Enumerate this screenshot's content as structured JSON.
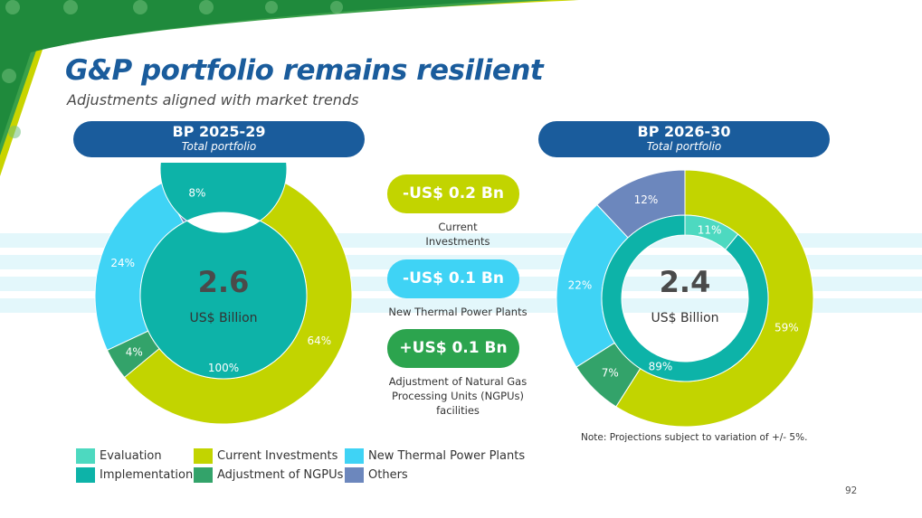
{
  "title": "G&P portfolio remains resilient",
  "subtitle": "Adjustments aligned with market trends",
  "colors": {
    "brand_blue": "#1a5c9c",
    "evaluation": "#4dd9c0",
    "implementation": "#0db3a8",
    "current_investments": "#c2d400",
    "new_thermal": "#3fd3f5",
    "adjustment_ngpus": "#33a36a",
    "others": "#6c87bd",
    "badge_light_green": "#c2d400",
    "badge_cyan": "#3fd3f5",
    "badge_green": "#2ca44e"
  },
  "left_panel": {
    "heading": "BP 2025-29",
    "subheading": "Total portfolio",
    "total_value": "2.6",
    "total_unit": "US$ Billion"
  },
  "right_panel": {
    "heading": "BP 2026-30",
    "subheading": "Total portfolio",
    "total_value": "2.4",
    "total_unit": "US$ Billion"
  },
  "changes": [
    {
      "label": "-US$ 0.2 Bn",
      "caption": "Current\nInvestments",
      "color": "#c2d400"
    },
    {
      "label": "-US$ 0.1 Bn",
      "caption": "New Thermal Power Plants",
      "color": "#3fd3f5"
    },
    {
      "label": "+US$ 0.1 Bn",
      "caption": "Adjustment of Natural Gas\nProcessing Units (NGPUs)\nfacilities",
      "color": "#2ca44e"
    }
  ],
  "note": "Note: Projections subject to variation of +/- 5%.",
  "page_number": "92",
  "legend": [
    {
      "label": "Evaluation",
      "color": "#4dd9c0"
    },
    {
      "label": "Current Investments",
      "color": "#c2d400"
    },
    {
      "label": "New Thermal Power Plants",
      "color": "#3fd3f5"
    },
    {
      "label": "Implementation",
      "color": "#0db3a8"
    },
    {
      "label": "Adjustment of NGPUs",
      "color": "#33a36a"
    },
    {
      "label": "Others",
      "color": "#6c87bd"
    }
  ],
  "chart_data": [
    {
      "type": "pie",
      "name": "BP 2025-29",
      "outer": {
        "categories": [
          "Current Investments",
          "Adjustment of NGPUs",
          "New Thermal Power Plants",
          "Others"
        ],
        "values": [
          64,
          4,
          24,
          8
        ],
        "labels": [
          "64%",
          "4%",
          "24%",
          "8%"
        ]
      },
      "inner": {
        "categories": [
          "Implementation"
        ],
        "values": [
          100
        ],
        "labels": [
          "100%"
        ]
      }
    },
    {
      "type": "pie",
      "name": "BP 2026-30",
      "outer": {
        "categories": [
          "Current Investments",
          "Adjustment of NGPUs",
          "New Thermal Power Plants",
          "Others"
        ],
        "values": [
          59,
          7,
          22,
          12
        ],
        "labels": [
          "59%",
          "7%",
          "22%",
          "12%"
        ]
      },
      "inner": {
        "categories": [
          "Evaluation",
          "Implementation"
        ],
        "values": [
          11,
          89
        ],
        "labels": [
          "11%",
          "89%"
        ]
      }
    }
  ]
}
